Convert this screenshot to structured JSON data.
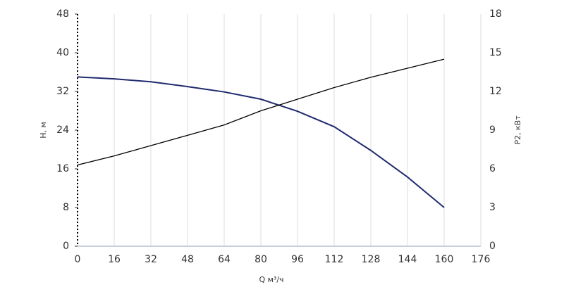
{
  "chart_data": {
    "type": "line",
    "x_label": "Q м³/ч",
    "y_label": "H, м",
    "y2_label": "P2, кВт",
    "x": [
      0,
      16,
      32,
      48,
      64,
      80,
      96,
      112,
      128,
      144,
      160
    ],
    "series": [
      {
        "color": "#1f2a6e",
        "values": [
          35,
          34.6,
          34,
          33,
          31.9,
          30.4,
          27.9,
          24.7,
          19.8,
          14.3,
          8
        ]
      },
      {
        "color": "#000000",
        "axis": "y2",
        "values": [
          6.3,
          7,
          7.8,
          8.6,
          9.4,
          10.5,
          11.4,
          12.3,
          13.1,
          13.8,
          14.5
        ]
      }
    ],
    "xlim": [
      0,
      176
    ],
    "xticks": [
      0,
      16,
      32,
      48,
      64,
      80,
      96,
      112,
      128,
      144,
      160,
      176
    ],
    "ylim": [
      0,
      48
    ],
    "yticks": [
      0,
      8,
      16,
      24,
      32,
      40,
      48
    ],
    "y2lim": [
      0,
      18
    ],
    "y2ticks": [
      0,
      3,
      6,
      9,
      12,
      15,
      18
    ],
    "grid": true
  }
}
